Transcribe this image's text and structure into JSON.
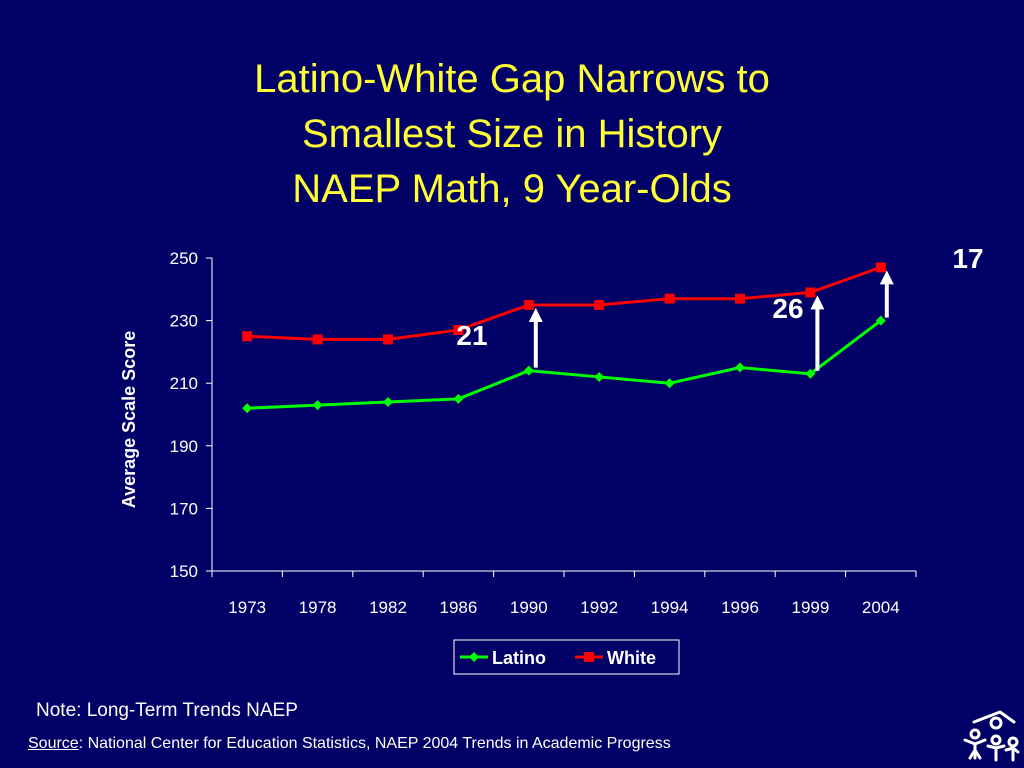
{
  "slide": {
    "title_lines": [
      "Latino-White Gap Narrows to",
      "Smallest Size in History",
      "NAEP Math, 9 Year-Olds"
    ],
    "note": "Note: Long-Term Trends NAEP",
    "source_label": "Source",
    "source_text": ": National Center for Education Statistics, NAEP 2004 Trends in Academic Progress",
    "logo_icon": "school-children-icon"
  },
  "chart_data": {
    "type": "line",
    "title": "",
    "xlabel": "",
    "ylabel": "Average Scale Score",
    "categories": [
      "1973",
      "1978",
      "1982",
      "1986",
      "1990",
      "1992",
      "1994",
      "1996",
      "1999",
      "2004"
    ],
    "ylim": [
      150,
      250
    ],
    "yticks": [
      150,
      170,
      190,
      210,
      230,
      250
    ],
    "grid": false,
    "legend_position": "bottom",
    "series": [
      {
        "name": "Latino",
        "color": "#00ff00",
        "marker": "diamond",
        "values": [
          202,
          203,
          204,
          205,
          214,
          212,
          210,
          215,
          213,
          230
        ]
      },
      {
        "name": "White",
        "color": "#ff0000",
        "marker": "square",
        "values": [
          225,
          224,
          224,
          227,
          235,
          235,
          237,
          237,
          239,
          247
        ]
      }
    ],
    "annotations": [
      {
        "label": "21",
        "category": "1990",
        "from": 214,
        "to": 235
      },
      {
        "label": "26",
        "category": "1999",
        "from": 213,
        "to": 239
      },
      {
        "label": "17",
        "category": "2004",
        "from": 230,
        "to": 247
      }
    ]
  }
}
